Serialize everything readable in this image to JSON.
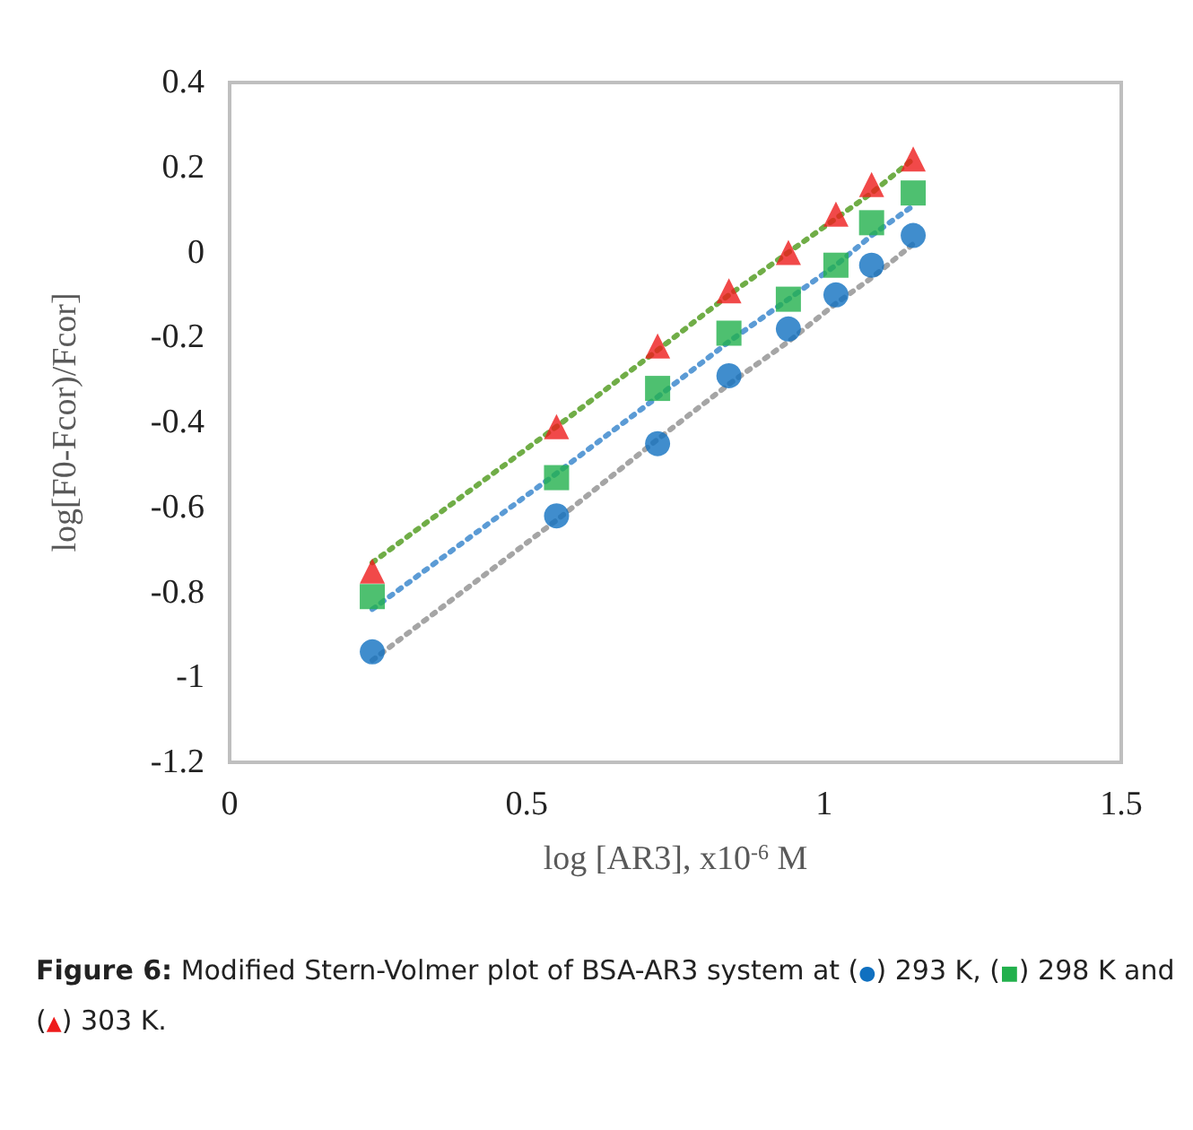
{
  "chart_data": {
    "type": "scatter",
    "xlabel": "log [AR3], x10$^{-6}$ M",
    "ylabel": "log[F0-Fcor)/Fcor]",
    "x": [
      0.24,
      0.55,
      0.72,
      0.84,
      0.94,
      1.02,
      1.08,
      1.15
    ],
    "series": [
      {
        "type": "line",
        "color": "#a5a5a5",
        "values": [
          -0.96,
          -0.63,
          -0.44,
          -0.31,
          -0.21,
          -0.12,
          -0.06,
          0.02
        ],
        "marker": "none",
        "line_style": "dotted"
      },
      {
        "type": "line",
        "color": "#5b9bd5",
        "values": [
          -0.84,
          -0.52,
          -0.34,
          -0.21,
          -0.11,
          -0.03,
          0.04,
          0.11
        ],
        "marker": "none",
        "line_style": "dotted"
      },
      {
        "type": "line",
        "color": "#70ad47",
        "values": [
          -0.73,
          -0.41,
          -0.23,
          -0.1,
          0.0,
          0.08,
          0.14,
          0.22
        ],
        "marker": "none",
        "line_style": "dotted"
      },
      {
        "color": "#1070c0",
        "marker": "circle",
        "values": [
          -0.94,
          -0.62,
          -0.45,
          -0.29,
          -0.18,
          -0.1,
          -0.03,
          0.04
        ]
      },
      {
        "color": "#22b04c",
        "marker": "square",
        "values": [
          -0.81,
          -0.53,
          -0.32,
          -0.19,
          -0.11,
          -0.03,
          0.07,
          0.14
        ]
      },
      {
        "color": "#ee1c1c",
        "marker": "triangle",
        "values": [
          -0.75,
          -0.41,
          -0.22,
          -0.09,
          0.0,
          0.09,
          0.16,
          0.22
        ]
      }
    ],
    "xlim": [
      0,
      1.5
    ],
    "xticks": [
      0,
      0.5,
      1,
      1.5
    ],
    "ylim": [
      -1.2,
      0.4
    ],
    "yticks": [
      -1.2,
      -1,
      -0.8,
      -0.6,
      -0.4,
      -0.2,
      0,
      0.2,
      0.4
    ],
    "grid": false,
    "annotations": [
      "Figure 6: Modified Stern-Volmer plot of BSA-AR3 system at (●) 293 K, (■) 298 K and (▲) 303 K."
    ]
  }
}
